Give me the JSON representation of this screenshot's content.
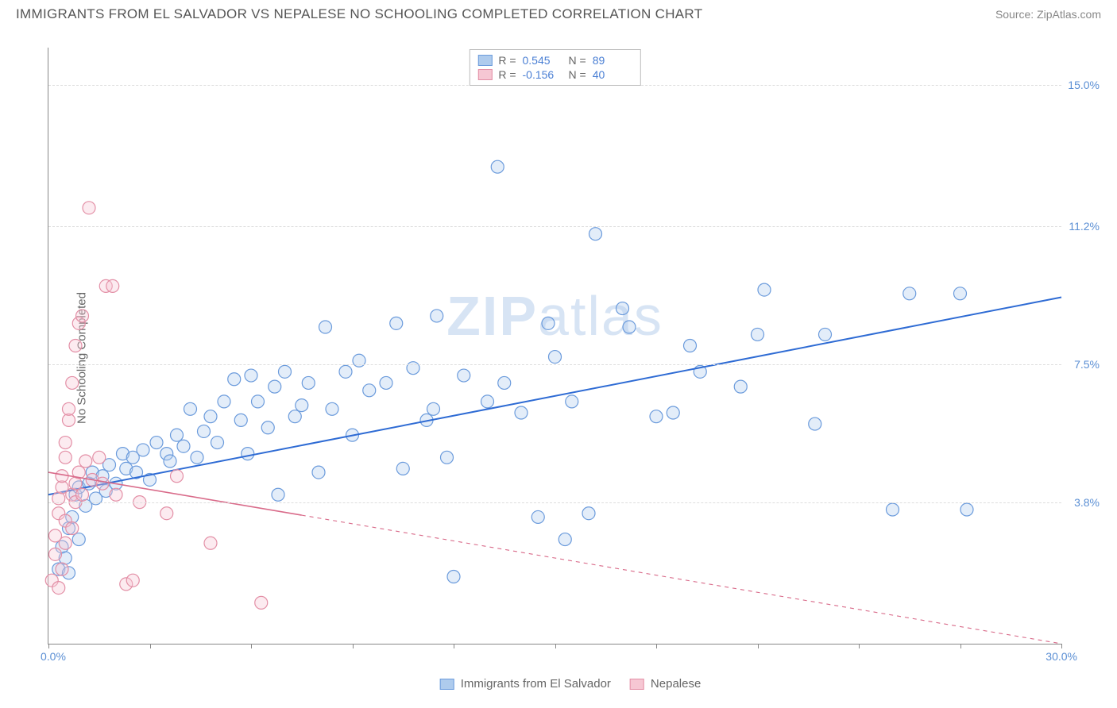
{
  "header": {
    "title": "IMMIGRANTS FROM EL SALVADOR VS NEPALESE NO SCHOOLING COMPLETED CORRELATION CHART",
    "source": "Source: ZipAtlas.com"
  },
  "chart": {
    "type": "scatter",
    "ylabel": "No Schooling Completed",
    "watermark": {
      "bold": "ZIP",
      "rest": "atlas"
    },
    "background_color": "#ffffff",
    "grid_color": "#dddddd",
    "axis_color": "#888888",
    "tick_label_color": "#5b8fd4",
    "xlim": [
      0,
      30
    ],
    "ylim": [
      0,
      16
    ],
    "x_ticks": [
      0,
      3,
      6,
      9,
      12,
      15,
      18,
      21,
      24,
      27,
      30
    ],
    "x_tick_labels": {
      "min": "0.0%",
      "max": "30.0%"
    },
    "y_gridlines": [
      3.8,
      7.5,
      11.2,
      15.0
    ],
    "y_tick_labels": [
      "3.8%",
      "7.5%",
      "11.2%",
      "15.0%"
    ],
    "top_legend": [
      {
        "swatch_fill": "#aecbed",
        "swatch_stroke": "#6b9bdc",
        "r_label": "R =",
        "r_val": "0.545",
        "n_label": "N =",
        "n_val": "89"
      },
      {
        "swatch_fill": "#f6c7d3",
        "swatch_stroke": "#e38fa6",
        "r_label": "R =",
        "r_val": "-0.156",
        "n_label": "N =",
        "n_val": "40"
      }
    ],
    "bottom_legend": [
      {
        "swatch_fill": "#aecbed",
        "swatch_stroke": "#6b9bdc",
        "label": "Immigrants from El Salvador"
      },
      {
        "swatch_fill": "#f6c7d3",
        "swatch_stroke": "#e38fa6",
        "label": "Nepalese"
      }
    ],
    "series": [
      {
        "name": "Immigrants from El Salvador",
        "marker_fill": "#aecbed",
        "marker_stroke": "#6b9bdc",
        "marker_r": 8,
        "trend_color": "#2e6bd4",
        "trend_width": 2,
        "trend": {
          "x1": 0,
          "y1": 4.0,
          "x2": 30,
          "y2": 9.3,
          "solid_until_x": 30
        },
        "points": [
          [
            0.3,
            2.0
          ],
          [
            0.4,
            2.6
          ],
          [
            0.5,
            2.3
          ],
          [
            0.6,
            3.1
          ],
          [
            0.6,
            1.9
          ],
          [
            0.7,
            3.4
          ],
          [
            0.8,
            4.0
          ],
          [
            0.9,
            4.2
          ],
          [
            0.9,
            2.8
          ],
          [
            1.1,
            3.7
          ],
          [
            1.2,
            4.3
          ],
          [
            1.3,
            4.6
          ],
          [
            1.4,
            3.9
          ],
          [
            1.6,
            4.5
          ],
          [
            1.7,
            4.1
          ],
          [
            1.8,
            4.8
          ],
          [
            2.0,
            4.3
          ],
          [
            2.2,
            5.1
          ],
          [
            2.3,
            4.7
          ],
          [
            2.5,
            5.0
          ],
          [
            2.6,
            4.6
          ],
          [
            2.8,
            5.2
          ],
          [
            3.0,
            4.4
          ],
          [
            3.2,
            5.4
          ],
          [
            3.5,
            5.1
          ],
          [
            3.6,
            4.9
          ],
          [
            3.8,
            5.6
          ],
          [
            4.0,
            5.3
          ],
          [
            4.2,
            6.3
          ],
          [
            4.4,
            5.0
          ],
          [
            4.6,
            5.7
          ],
          [
            4.8,
            6.1
          ],
          [
            5.0,
            5.4
          ],
          [
            5.2,
            6.5
          ],
          [
            5.5,
            7.1
          ],
          [
            5.7,
            6.0
          ],
          [
            5.9,
            5.1
          ],
          [
            6.0,
            7.2
          ],
          [
            6.2,
            6.5
          ],
          [
            6.5,
            5.8
          ],
          [
            6.7,
            6.9
          ],
          [
            6.8,
            4.0
          ],
          [
            7.0,
            7.3
          ],
          [
            7.3,
            6.1
          ],
          [
            7.5,
            6.4
          ],
          [
            7.7,
            7.0
          ],
          [
            8.0,
            4.6
          ],
          [
            8.2,
            8.5
          ],
          [
            8.4,
            6.3
          ],
          [
            8.8,
            7.3
          ],
          [
            9.0,
            5.6
          ],
          [
            9.2,
            7.6
          ],
          [
            9.5,
            6.8
          ],
          [
            10.0,
            7.0
          ],
          [
            10.3,
            8.6
          ],
          [
            10.5,
            4.7
          ],
          [
            10.8,
            7.4
          ],
          [
            11.2,
            6.0
          ],
          [
            11.4,
            6.3
          ],
          [
            11.5,
            8.8
          ],
          [
            11.8,
            5.0
          ],
          [
            12.0,
            1.8
          ],
          [
            12.3,
            7.2
          ],
          [
            13.0,
            6.5
          ],
          [
            13.3,
            12.8
          ],
          [
            13.5,
            7.0
          ],
          [
            14.0,
            6.2
          ],
          [
            14.5,
            3.4
          ],
          [
            14.8,
            8.6
          ],
          [
            15.0,
            7.7
          ],
          [
            15.3,
            2.8
          ],
          [
            15.5,
            6.5
          ],
          [
            16.0,
            3.5
          ],
          [
            16.2,
            11.0
          ],
          [
            17.0,
            9.0
          ],
          [
            17.2,
            8.5
          ],
          [
            18.0,
            6.1
          ],
          [
            18.5,
            6.2
          ],
          [
            19.0,
            8.0
          ],
          [
            19.3,
            7.3
          ],
          [
            20.5,
            6.9
          ],
          [
            21.0,
            8.3
          ],
          [
            21.2,
            9.5
          ],
          [
            22.7,
            5.9
          ],
          [
            23.0,
            8.3
          ],
          [
            25.0,
            3.6
          ],
          [
            25.5,
            9.4
          ],
          [
            27.0,
            9.4
          ],
          [
            27.2,
            3.6
          ]
        ]
      },
      {
        "name": "Nepalese",
        "marker_fill": "#f6c7d3",
        "marker_stroke": "#e38fa6",
        "marker_r": 8,
        "trend_color": "#d96b8a",
        "trend_width": 1.6,
        "trend": {
          "x1": 0,
          "y1": 4.6,
          "x2": 30,
          "y2": 0.0,
          "solid_until_x": 7.5
        },
        "points": [
          [
            0.1,
            1.7
          ],
          [
            0.2,
            2.4
          ],
          [
            0.2,
            2.9
          ],
          [
            0.3,
            1.5
          ],
          [
            0.3,
            3.5
          ],
          [
            0.3,
            3.9
          ],
          [
            0.4,
            2.0
          ],
          [
            0.4,
            4.2
          ],
          [
            0.4,
            4.5
          ],
          [
            0.5,
            3.3
          ],
          [
            0.5,
            5.0
          ],
          [
            0.5,
            5.4
          ],
          [
            0.5,
            2.7
          ],
          [
            0.6,
            6.0
          ],
          [
            0.6,
            6.3
          ],
          [
            0.7,
            3.1
          ],
          [
            0.7,
            7.0
          ],
          [
            0.7,
            4.0
          ],
          [
            0.8,
            8.0
          ],
          [
            0.8,
            3.8
          ],
          [
            0.8,
            4.3
          ],
          [
            0.9,
            8.6
          ],
          [
            0.9,
            4.6
          ],
          [
            1.0,
            4.0
          ],
          [
            1.0,
            8.8
          ],
          [
            1.1,
            4.9
          ],
          [
            1.2,
            11.7
          ],
          [
            1.3,
            4.4
          ],
          [
            1.5,
            5.0
          ],
          [
            1.6,
            4.3
          ],
          [
            1.7,
            9.6
          ],
          [
            1.9,
            9.6
          ],
          [
            2.0,
            4.0
          ],
          [
            2.3,
            1.6
          ],
          [
            2.5,
            1.7
          ],
          [
            2.7,
            3.8
          ],
          [
            3.5,
            3.5
          ],
          [
            3.8,
            4.5
          ],
          [
            4.8,
            2.7
          ],
          [
            6.3,
            1.1
          ]
        ]
      }
    ]
  }
}
